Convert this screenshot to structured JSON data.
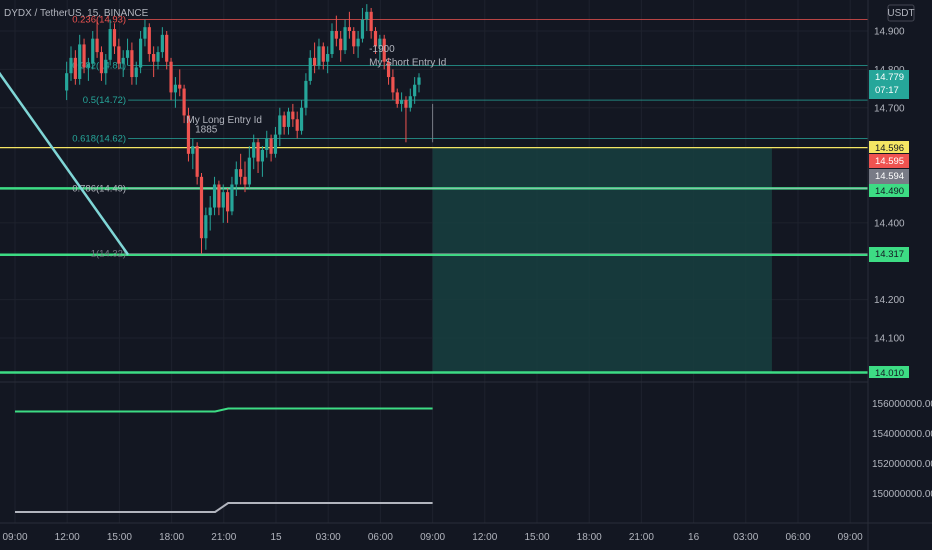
{
  "header": {
    "symbol": "DYDX / TetherUS, 15, BINANCE",
    "currency": "USDT"
  },
  "colors": {
    "background": "#131722",
    "up": "#26a69a",
    "down": "#ef5350",
    "fib_line": "#4a6b7a",
    "tp_zone": "#174040",
    "green_line": "#3ddc84",
    "yellow_line": "#f5e663",
    "red_line": "#ef5350",
    "trend_line": "#7fd6d6"
  },
  "chart_data": {
    "type": "candlestick",
    "symbol": "DYDX / TetherUS",
    "interval": "15",
    "exchange": "BINANCE",
    "price_axis": {
      "ylim": [
        14.01,
        14.97
      ],
      "ticks": [
        14.9,
        14.8,
        14.7,
        14.4,
        14.2,
        14.1
      ],
      "tick_labels": [
        "14.900",
        "14.800",
        "14.700",
        "14.400",
        "14.200",
        "14.100"
      ]
    },
    "volume_axis": {
      "ticks": [
        "156000000.000",
        "154000000.000",
        "152000000.000",
        "150000000.000"
      ]
    },
    "time_axis": {
      "labels": [
        "09:00",
        "12:00",
        "15:00",
        "18:00",
        "21:00",
        "15",
        "03:00",
        "06:00",
        "09:00",
        "12:00",
        "15:00",
        "18:00",
        "21:00",
        "16",
        "03:00",
        "06:00",
        "09:00"
      ]
    },
    "price_tags": [
      {
        "value": "14.779",
        "sub": "07:17",
        "bg": "#26a69a",
        "fg": "#ffffff"
      },
      {
        "value": "14.596",
        "bg": "#f5e663",
        "fg": "#131722"
      },
      {
        "value": "14.595",
        "bg": "#ef5350",
        "fg": "#ffffff"
      },
      {
        "value": "14.594",
        "bg": "#787b86",
        "fg": "#ffffff"
      },
      {
        "value": "14.490",
        "bg": "#3ddc84",
        "fg": "#131722"
      },
      {
        "value": "14.317",
        "bg": "#3ddc84",
        "fg": "#131722"
      },
      {
        "value": "14.010",
        "bg": "#3ddc84",
        "fg": "#131722"
      }
    ],
    "fib_levels": [
      {
        "label": "0.236(14.93)",
        "price": 14.93,
        "color": "#ef5350"
      },
      {
        "label": "0.382(14.81)",
        "price": 14.81,
        "color": "#26a69a"
      },
      {
        "label": "0.5(14.72)",
        "price": 14.72,
        "color": "#26a69a"
      },
      {
        "label": "0.618(14.62)",
        "price": 14.62,
        "color": "#26a69a"
      },
      {
        "label": "0.786(14.49)",
        "price": 14.49,
        "color": "#b2b5be"
      },
      {
        "label": "1(14.32)",
        "price": 14.32,
        "color": "#787b86"
      }
    ],
    "horizontal_lines": [
      {
        "price": 14.596,
        "color": "#f5e663"
      },
      {
        "price": 14.49,
        "color": "#3ddc84"
      },
      {
        "price": 14.317,
        "color": "#3ddc84"
      },
      {
        "price": 14.01,
        "color": "#3ddc84"
      }
    ],
    "annotations": [
      {
        "text": "My Long Entry Id",
        "time": "20:00",
        "price": 14.66
      },
      {
        "text": "1885",
        "time": "20:30",
        "price": 14.635
      },
      {
        "text": "-1900",
        "time": "06:30",
        "price": 14.845
      },
      {
        "text": "My Short Entry Id",
        "time": "06:30",
        "price": 14.81
      }
    ],
    "target_zone": {
      "from_time": "09:00",
      "to_time": "04:30",
      "price_top": 14.596,
      "price_bottom": 14.01
    },
    "candles": [
      [
        14.745,
        14.82,
        14.72,
        14.79
      ],
      [
        14.79,
        14.86,
        14.77,
        14.83
      ],
      [
        14.83,
        14.85,
        14.76,
        14.775
      ],
      [
        14.775,
        14.89,
        14.76,
        14.865
      ],
      [
        14.865,
        14.88,
        14.79,
        14.805
      ],
      [
        14.805,
        14.83,
        14.77,
        14.815
      ],
      [
        14.815,
        14.9,
        14.8,
        14.88
      ],
      [
        14.88,
        14.93,
        14.83,
        14.845
      ],
      [
        14.845,
        14.86,
        14.77,
        14.79
      ],
      [
        14.79,
        14.84,
        14.76,
        14.825
      ],
      [
        14.825,
        14.93,
        14.81,
        14.905
      ],
      [
        14.905,
        14.92,
        14.84,
        14.86
      ],
      [
        14.86,
        14.88,
        14.8,
        14.815
      ],
      [
        14.815,
        14.85,
        14.78,
        14.83
      ],
      [
        14.83,
        14.88,
        14.81,
        14.85
      ],
      [
        14.85,
        14.87,
        14.76,
        14.78
      ],
      [
        14.78,
        14.82,
        14.76,
        14.805
      ],
      [
        14.805,
        14.9,
        14.79,
        14.88
      ],
      [
        14.88,
        14.93,
        14.86,
        14.91
      ],
      [
        14.91,
        14.92,
        14.82,
        14.84
      ],
      [
        14.84,
        14.86,
        14.78,
        14.82
      ],
      [
        14.82,
        14.86,
        14.8,
        14.845
      ],
      [
        14.845,
        14.91,
        14.83,
        14.89
      ],
      [
        14.89,
        14.9,
        14.8,
        14.82
      ],
      [
        14.82,
        14.83,
        14.72,
        14.74
      ],
      [
        14.74,
        14.78,
        14.7,
        14.76
      ],
      [
        14.76,
        14.8,
        14.73,
        14.75
      ],
      [
        14.75,
        14.76,
        14.66,
        14.68
      ],
      [
        14.68,
        14.7,
        14.56,
        14.58
      ],
      [
        14.58,
        14.62,
        14.54,
        14.6
      ],
      [
        14.6,
        14.61,
        14.5,
        14.52
      ],
      [
        14.52,
        14.53,
        14.32,
        14.36
      ],
      [
        14.36,
        14.44,
        14.33,
        14.42
      ],
      [
        14.42,
        14.47,
        14.38,
        14.44
      ],
      [
        14.44,
        14.52,
        14.42,
        14.5
      ],
      [
        14.5,
        14.51,
        14.42,
        14.44
      ],
      [
        14.44,
        14.5,
        14.4,
        14.48
      ],
      [
        14.48,
        14.49,
        14.4,
        14.43
      ],
      [
        14.43,
        14.52,
        14.42,
        14.5
      ],
      [
        14.5,
        14.56,
        14.47,
        14.54
      ],
      [
        14.54,
        14.58,
        14.5,
        14.52
      ],
      [
        14.52,
        14.56,
        14.48,
        14.5
      ],
      [
        14.5,
        14.6,
        14.49,
        14.57
      ],
      [
        14.57,
        14.63,
        14.54,
        14.61
      ],
      [
        14.61,
        14.62,
        14.53,
        14.56
      ],
      [
        14.56,
        14.6,
        14.52,
        14.59
      ],
      [
        14.59,
        14.64,
        14.57,
        14.62
      ],
      [
        14.62,
        14.63,
        14.56,
        14.58
      ],
      [
        14.58,
        14.65,
        14.57,
        14.63
      ],
      [
        14.63,
        14.7,
        14.6,
        14.68
      ],
      [
        14.68,
        14.69,
        14.63,
        14.65
      ],
      [
        14.65,
        14.7,
        14.63,
        14.69
      ],
      [
        14.69,
        14.71,
        14.65,
        14.67
      ],
      [
        14.67,
        14.69,
        14.62,
        14.64
      ],
      [
        14.64,
        14.72,
        14.63,
        14.7
      ],
      [
        14.7,
        14.79,
        14.68,
        14.77
      ],
      [
        14.77,
        14.85,
        14.76,
        14.83
      ],
      [
        14.83,
        14.87,
        14.79,
        14.81
      ],
      [
        14.81,
        14.88,
        14.8,
        14.86
      ],
      [
        14.86,
        14.87,
        14.8,
        14.82
      ],
      [
        14.82,
        14.86,
        14.79,
        14.84
      ],
      [
        14.84,
        14.92,
        14.83,
        14.9
      ],
      [
        14.9,
        14.94,
        14.86,
        14.88
      ],
      [
        14.88,
        14.9,
        14.82,
        14.85
      ],
      [
        14.85,
        14.93,
        14.84,
        14.91
      ],
      [
        14.91,
        14.95,
        14.88,
        14.9
      ],
      [
        14.9,
        14.91,
        14.84,
        14.86
      ],
      [
        14.86,
        14.9,
        14.83,
        14.88
      ],
      [
        14.88,
        14.96,
        14.87,
        14.93
      ],
      [
        14.93,
        14.97,
        14.9,
        14.95
      ],
      [
        14.95,
        14.96,
        14.88,
        14.9
      ],
      [
        14.9,
        14.91,
        14.84,
        14.86
      ],
      [
        14.86,
        14.89,
        14.82,
        14.88
      ],
      [
        14.88,
        14.89,
        14.8,
        14.82
      ],
      [
        14.82,
        14.83,
        14.76,
        14.78
      ],
      [
        14.78,
        14.8,
        14.72,
        14.74
      ],
      [
        14.74,
        14.75,
        14.7,
        14.71
      ],
      [
        14.71,
        14.74,
        14.69,
        14.72
      ],
      [
        14.72,
        14.73,
        14.61,
        14.7
      ],
      [
        14.7,
        14.75,
        14.69,
        14.73
      ],
      [
        14.73,
        14.78,
        14.71,
        14.76
      ],
      [
        14.76,
        14.79,
        14.74,
        14.779
      ]
    ],
    "volume_lines": [
      {
        "color": "#3ddc84",
        "points": [
          {
            "time": "09:00",
            "value": 155500000
          },
          {
            "time": "20:30",
            "value": 155500000
          },
          {
            "time": "21:15",
            "value": 155700000
          },
          {
            "time": "09:00",
            "value": 155700000
          }
        ]
      },
      {
        "color": "#b2b5be",
        "points": [
          {
            "time": "09:00",
            "value": 148800000
          },
          {
            "time": "20:30",
            "value": 148800000
          },
          {
            "time": "21:15",
            "value": 149400000
          },
          {
            "time": "09:00",
            "value": 149400000
          }
        ]
      }
    ]
  }
}
